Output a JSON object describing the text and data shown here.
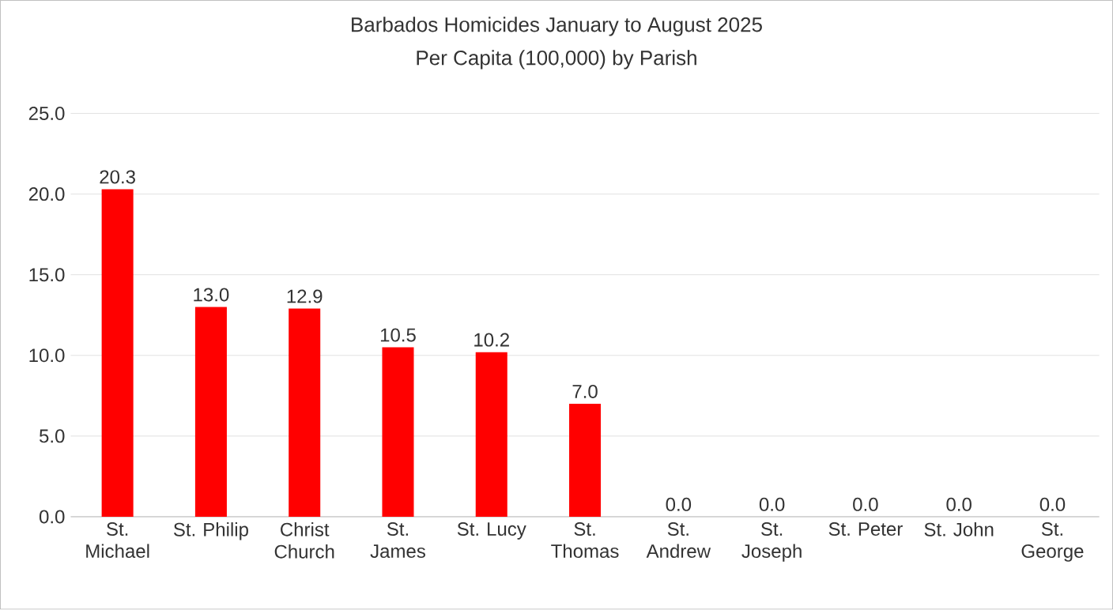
{
  "chart_data": {
    "type": "bar",
    "title": "Barbados Homicides January to August 2025",
    "subtitle": "Per Capita (100,000) by Parish",
    "categories": [
      "St. Michael",
      "St. Philip",
      "Christ Church",
      "St. James",
      "St. Lucy",
      "St. Thomas",
      "St. Andrew",
      "St. Joseph",
      "St. Peter",
      "St. John",
      "St. George"
    ],
    "values": [
      20.3,
      13.0,
      12.9,
      10.5,
      10.2,
      7.0,
      0.0,
      0.0,
      0.0,
      0.0,
      0.0
    ],
    "value_labels": [
      "20.3",
      "13.0",
      "12.9",
      "10.5",
      "10.2",
      "7.0",
      "0.0",
      "0.0",
      "0.0",
      "0.0",
      "0.0"
    ],
    "color": "#ff0000",
    "ylim": [
      0,
      25
    ],
    "yticks": [
      {
        "value": 0,
        "label": "0.0"
      },
      {
        "value": 5,
        "label": "5.0"
      },
      {
        "value": 10,
        "label": "10.0"
      },
      {
        "value": 15,
        "label": "15.0"
      },
      {
        "value": 20,
        "label": "20.0"
      },
      {
        "value": 25,
        "label": "25.0"
      }
    ],
    "grid": "y"
  }
}
